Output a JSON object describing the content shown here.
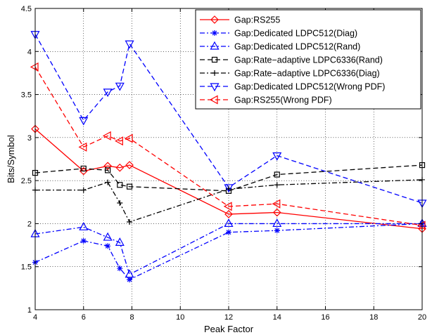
{
  "chart_data": {
    "type": "line",
    "title": "",
    "xlabel": "Peak Factor",
    "ylabel": "Bits/Symbol",
    "xlim": [
      4,
      20
    ],
    "ylim": [
      1,
      4.5
    ],
    "xticks": [
      4,
      6,
      8,
      10,
      12,
      14,
      16,
      18,
      20
    ],
    "yticks": [
      1,
      1.5,
      2,
      2.5,
      3,
      3.5,
      4,
      4.5
    ],
    "grid": true,
    "legend_position": "top-right",
    "series": [
      {
        "name": "Gap:RS255",
        "color": "#ff0000",
        "dash": "solid",
        "marker": "diamond",
        "x": [
          4,
          6,
          7,
          7.5,
          7.9,
          12,
          14,
          20
        ],
        "y": [
          3.1,
          2.61,
          2.67,
          2.65,
          2.68,
          2.11,
          2.13,
          1.94
        ]
      },
      {
        "name": "Gap:Dedicated LDPC512(Diag)",
        "color": "#0000ff",
        "dash": "dashdot",
        "marker": "asterisk",
        "x": [
          4,
          6,
          7,
          7.5,
          7.9,
          12,
          14,
          20
        ],
        "y": [
          1.55,
          1.8,
          1.74,
          1.48,
          1.35,
          1.9,
          1.92,
          2.0
        ]
      },
      {
        "name": "Gap:Dedicated LDPC512(Rand)",
        "color": "#0000ff",
        "dash": "dashdot",
        "marker": "triangle-up",
        "x": [
          4,
          6,
          7,
          7.5,
          7.9,
          12,
          14,
          20
        ],
        "y": [
          1.88,
          1.96,
          1.84,
          1.78,
          1.41,
          2.0,
          2.0,
          2.0
        ]
      },
      {
        "name": "Gap:Rate−adaptive LDPC6336(Rand)",
        "color": "#000000",
        "dash": "dashed",
        "marker": "square",
        "x": [
          4,
          6,
          7,
          7.5,
          7.9,
          12,
          14,
          20
        ],
        "y": [
          2.59,
          2.64,
          2.62,
          2.45,
          2.43,
          2.38,
          2.57,
          2.68
        ]
      },
      {
        "name": "Gap:Rate−adaptive LDPC6336(Diag)",
        "color": "#000000",
        "dash": "dashdot",
        "marker": "plus",
        "x": [
          4,
          6,
          7,
          7.5,
          7.9,
          12,
          14,
          20
        ],
        "y": [
          2.39,
          2.39,
          2.48,
          2.24,
          2.02,
          2.4,
          2.45,
          2.51
        ]
      },
      {
        "name": "Gap:Dedicated LDPC512(Wrong PDF)",
        "color": "#0000ff",
        "dash": "dashed",
        "marker": "triangle-down",
        "x": [
          4,
          6,
          7,
          7.5,
          7.9,
          12,
          14,
          20
        ],
        "y": [
          4.2,
          3.2,
          3.53,
          3.6,
          4.09,
          2.42,
          2.79,
          2.24
        ]
      },
      {
        "name": "Gap:RS255(Wrong PDF)",
        "color": "#ff0000",
        "dash": "dashed",
        "marker": "triangle-left",
        "x": [
          4,
          6,
          7,
          7.5,
          7.9,
          12,
          14,
          20
        ],
        "y": [
          3.82,
          2.89,
          3.02,
          2.96,
          2.99,
          2.2,
          2.23,
          1.98
        ]
      }
    ]
  }
}
